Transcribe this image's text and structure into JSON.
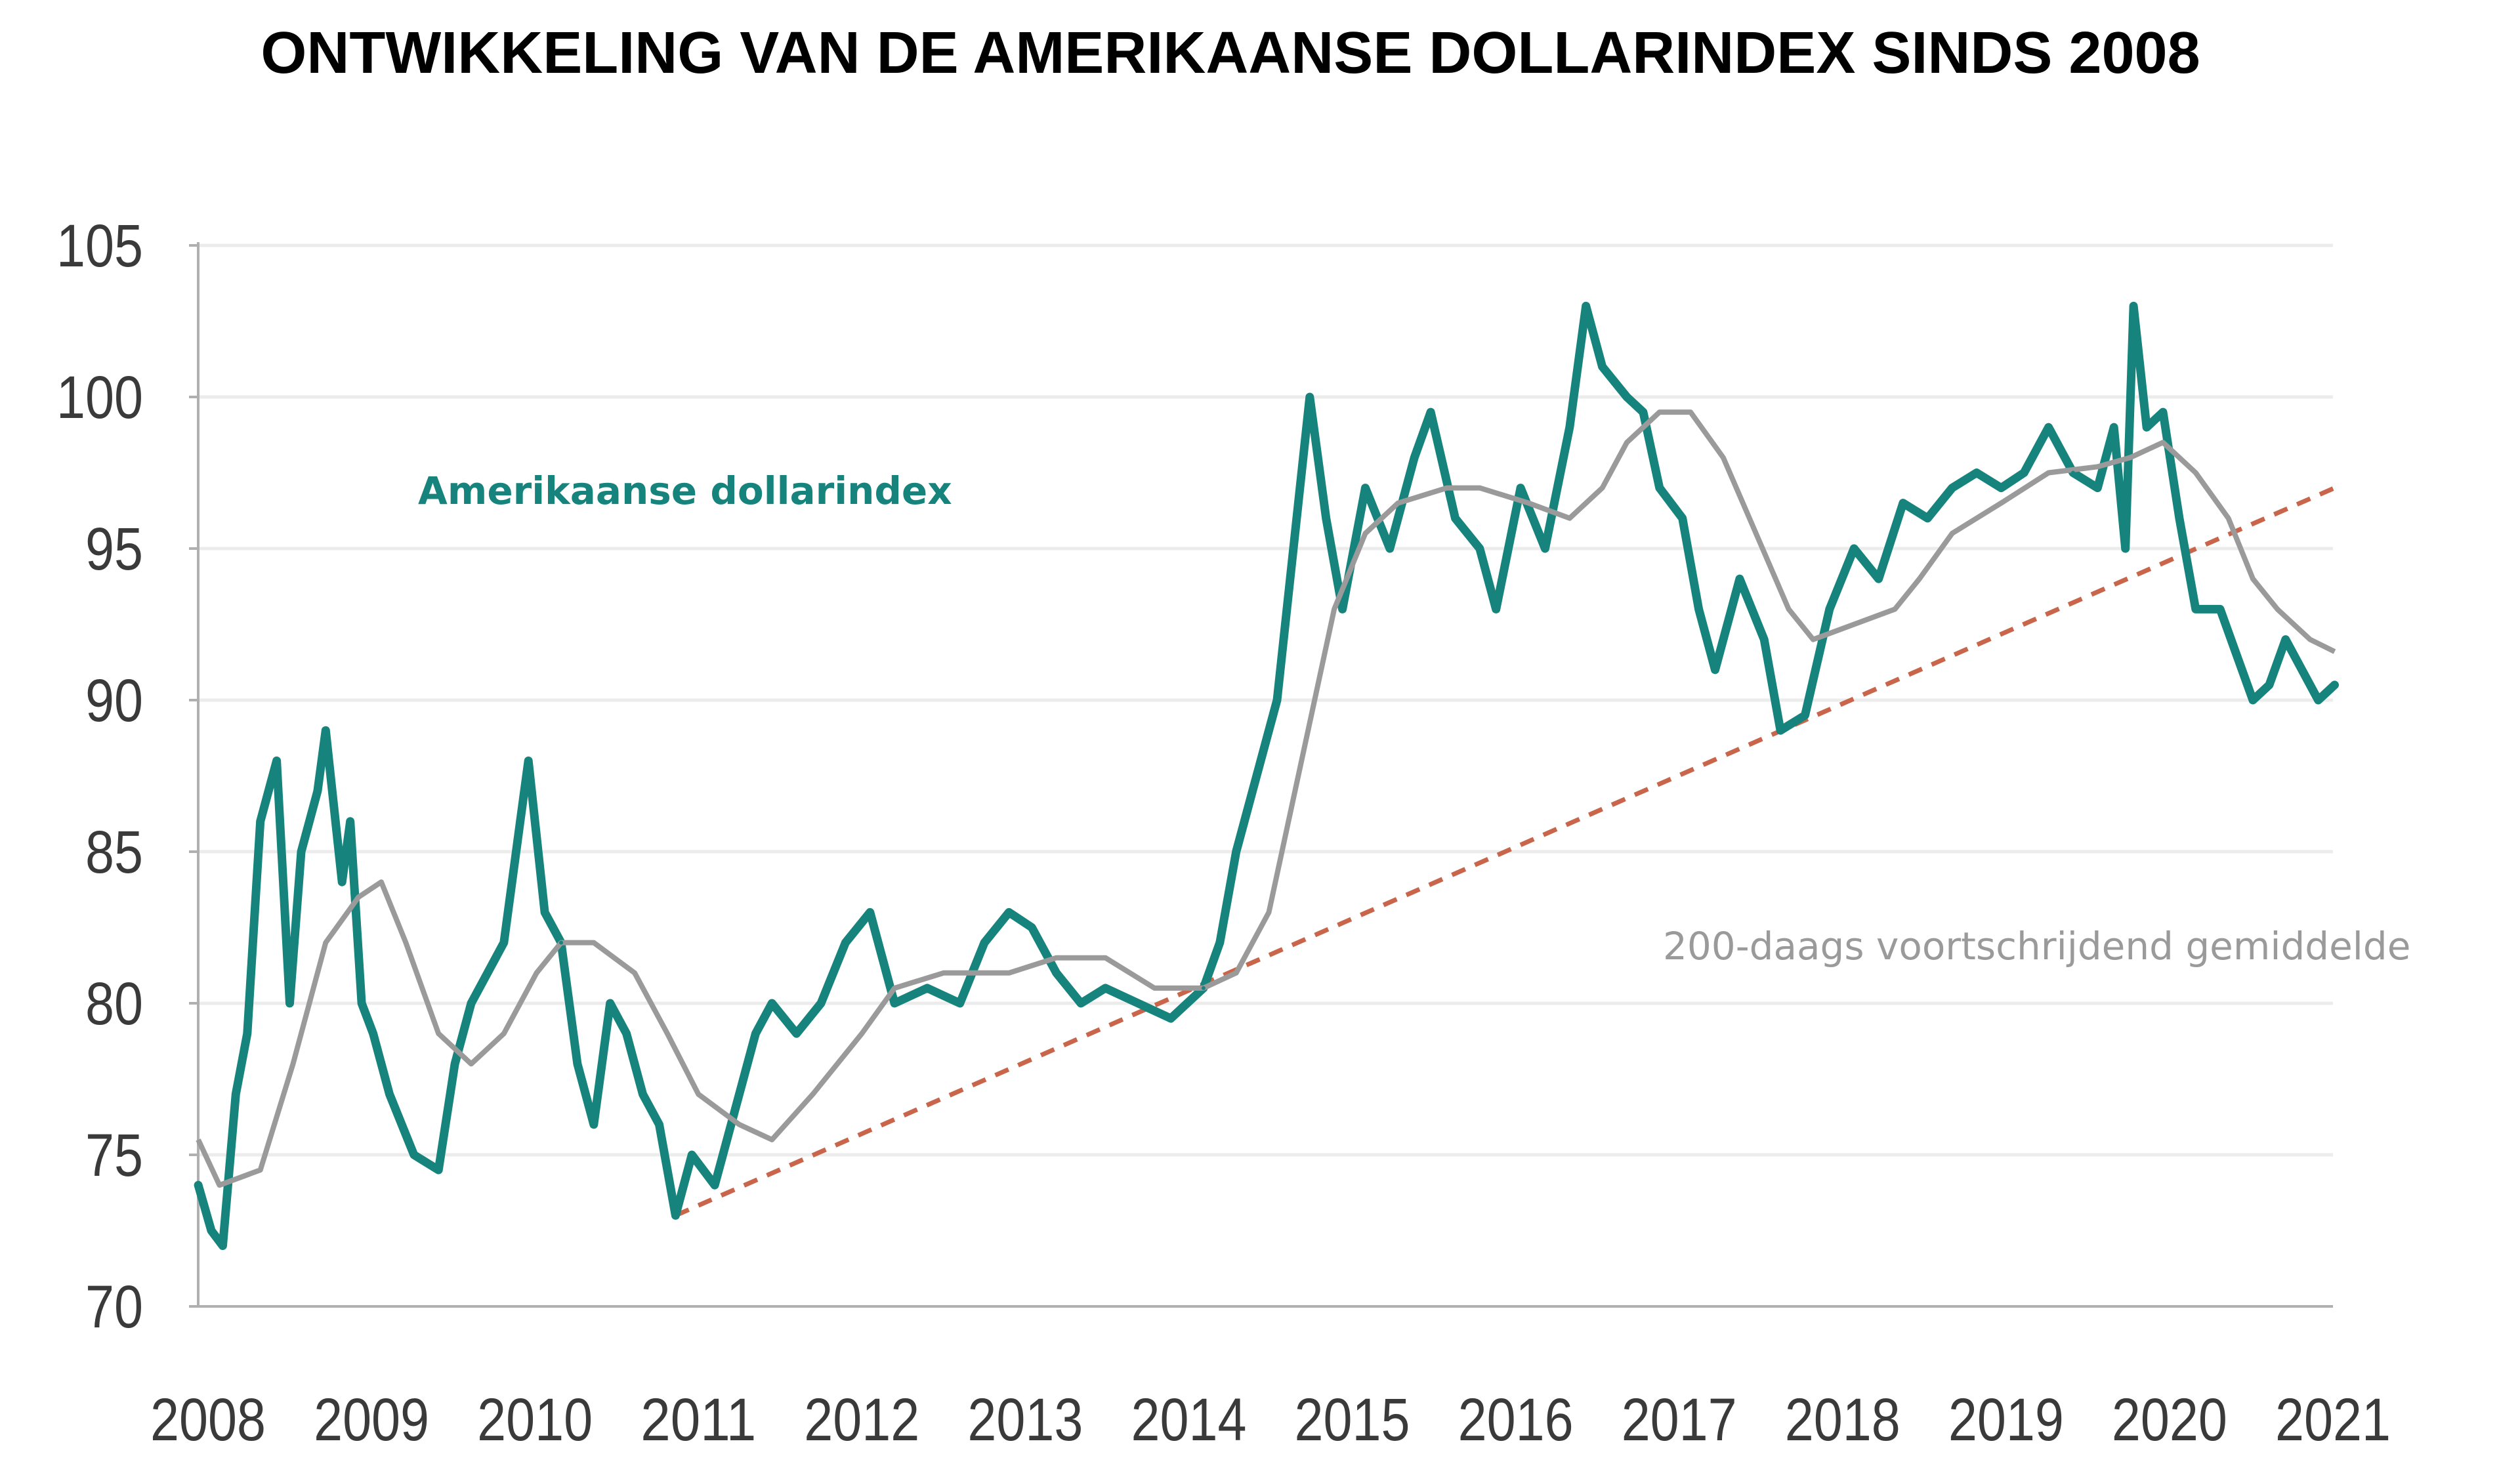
{
  "chart_data": {
    "type": "line",
    "title": "ONTWIKKELING VAN DE AMERIKAANSE DOLLARINDEX SINDS 2008",
    "xlabel": "",
    "ylabel": "",
    "xlim": [
      2008,
      2021
    ],
    "ylim": [
      70,
      105
    ],
    "x_ticks": [
      "2008",
      "2009",
      "2010",
      "2011",
      "2012",
      "2013",
      "2014",
      "2015",
      "2016",
      "2017",
      "2018",
      "2019",
      "2020",
      "2021"
    ],
    "y_ticks": [
      "70",
      "75",
      "80",
      "85",
      "90",
      "95",
      "100",
      "105"
    ],
    "grid": "horizontal",
    "colors": {
      "index": "#16847c",
      "ma": "#9a9a9a",
      "trend": "#c8654a",
      "grid": "#ececec",
      "axis": "#b0b0b0"
    },
    "series": [
      {
        "name": "Amerikaanse dollarindex",
        "x": [
          2007.94,
          2008.02,
          2008.09,
          2008.17,
          2008.24,
          2008.32,
          2008.42,
          2008.5,
          2008.57,
          2008.67,
          2008.72,
          2008.82,
          2008.87,
          2008.94,
          2009.01,
          2009.11,
          2009.26,
          2009.41,
          2009.51,
          2009.61,
          2009.71,
          2009.81,
          2009.91,
          2009.96,
          2010.06,
          2010.16,
          2010.26,
          2010.36,
          2010.46,
          2010.56,
          2010.66,
          2010.76,
          2010.86,
          2010.96,
          2011.1,
          2011.25,
          2011.35,
          2011.45,
          2011.6,
          2011.75,
          2011.9,
          2012.05,
          2012.2,
          2012.4,
          2012.6,
          2012.75,
          2012.9,
          2013.04,
          2013.19,
          2013.34,
          2013.49,
          2013.69,
          2013.89,
          2014.09,
          2014.19,
          2014.29,
          2014.39,
          2014.54,
          2014.64,
          2014.74,
          2014.84,
          2014.94,
          2015.08,
          2015.23,
          2015.38,
          2015.48,
          2015.63,
          2015.78,
          2015.88,
          2016.03,
          2016.18,
          2016.33,
          2016.43,
          2016.53,
          2016.68,
          2016.78,
          2016.88,
          2017.02,
          2017.12,
          2017.22,
          2017.37,
          2017.52,
          2017.62,
          2017.77,
          2017.92,
          2018.07,
          2018.22,
          2018.37,
          2018.52,
          2018.67,
          2018.82,
          2018.97,
          2019.11,
          2019.26,
          2019.41,
          2019.56,
          2019.66,
          2019.73,
          2019.78,
          2019.86,
          2019.96,
          2020.06,
          2020.16,
          2020.31,
          2020.41,
          2020.51,
          2020.61,
          2020.71,
          2020.81,
          2020.91,
          2021.01
        ],
        "y": [
          74,
          72.5,
          72,
          77,
          79,
          86,
          88,
          80,
          85,
          87,
          89,
          84,
          86,
          80,
          79,
          77,
          75,
          74.5,
          78,
          80,
          81,
          82,
          86,
          88,
          83,
          82,
          78,
          76,
          80,
          79,
          77,
          76,
          73,
          75,
          74,
          77,
          79,
          80,
          79,
          80,
          82,
          83,
          80,
          80.5,
          80,
          82,
          83,
          82.5,
          81,
          80,
          80.5,
          80,
          79.5,
          80.5,
          82,
          85,
          87,
          90,
          95,
          100,
          96,
          93,
          97,
          95,
          98,
          99.5,
          96,
          95,
          93,
          97,
          95,
          99,
          103,
          101,
          100,
          99.5,
          97,
          96,
          93,
          91,
          94,
          92,
          89,
          89.5,
          93,
          95,
          94,
          96.5,
          96,
          97,
          97.5,
          97,
          97.5,
          99,
          97.5,
          97,
          99,
          95,
          103,
          99,
          99.5,
          96,
          93,
          93,
          91.5,
          90,
          90.5,
          92,
          91,
          90,
          90.5
        ]
      },
      {
        "name": "200-daags voortschrijdend gemiddelde",
        "x": [
          2007.94,
          2008.07,
          2008.32,
          2008.52,
          2008.72,
          2008.92,
          2009.06,
          2009.21,
          2009.41,
          2009.61,
          2009.81,
          2010.01,
          2010.16,
          2010.36,
          2010.61,
          2010.81,
          2011.0,
          2011.25,
          2011.45,
          2011.7,
          2012.0,
          2012.2,
          2012.5,
          2012.9,
          2013.19,
          2013.49,
          2013.79,
          2014.09,
          2014.29,
          2014.49,
          2014.69,
          2014.89,
          2015.08,
          2015.28,
          2015.58,
          2015.78,
          2016.08,
          2016.33,
          2016.53,
          2016.68,
          2016.88,
          2017.07,
          2017.27,
          2017.47,
          2017.67,
          2017.82,
          2018.07,
          2018.32,
          2018.47,
          2018.67,
          2018.97,
          2019.26,
          2019.56,
          2019.76,
          2019.96,
          2020.16,
          2020.36,
          2020.51,
          2020.66,
          2020.86,
          2021.01
        ],
        "y": [
          75.5,
          74,
          74.5,
          78,
          82,
          83.5,
          84,
          82,
          79,
          78,
          79,
          81,
          82,
          82,
          81,
          79,
          77,
          76,
          75.5,
          77,
          79,
          80.5,
          81,
          81,
          81.5,
          81.5,
          80.5,
          80.5,
          81,
          83,
          88,
          93,
          95.5,
          96.5,
          97,
          97,
          96.5,
          96,
          97,
          98.5,
          99.5,
          99.5,
          98,
          95.5,
          93,
          92,
          92.5,
          93,
          94,
          95.5,
          96.5,
          97.5,
          97.7,
          98,
          98.5,
          97.5,
          96,
          94,
          93,
          92,
          91.6
        ]
      },
      {
        "name": "trendline",
        "x": [
          2010.86,
          2021.01
        ],
        "y": [
          73,
          97
        ]
      }
    ],
    "legend": [
      {
        "label": "Amerikaanse dollarindex",
        "placement": "upper-left"
      },
      {
        "label": "200-daags voortschrijdend gemiddelde",
        "placement": "right"
      }
    ]
  }
}
